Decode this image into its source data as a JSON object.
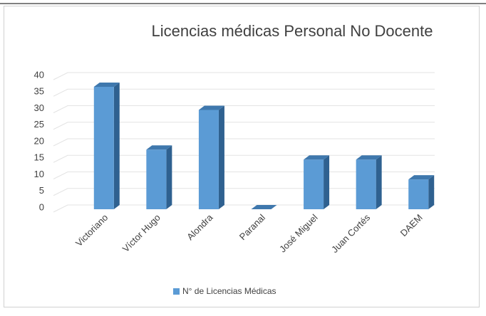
{
  "chart_data": {
    "type": "bar3d",
    "title": "Licencias médicas Personal No Docente",
    "categories": [
      "Victoriano",
      "Víctor Hugo",
      "Alondra",
      "Paranal",
      "José Miguel",
      "Juan Cortés",
      "DAEM"
    ],
    "series": [
      {
        "name": "N° de Licencias Médicas",
        "color": "#5b9bd5",
        "values": [
          37,
          18,
          30,
          0,
          15,
          15,
          9
        ]
      }
    ],
    "ylim": [
      0,
      40
    ],
    "yticks": [
      0,
      5,
      10,
      15,
      20,
      25,
      30,
      35,
      40
    ],
    "grid": true,
    "legend": "bottom"
  }
}
